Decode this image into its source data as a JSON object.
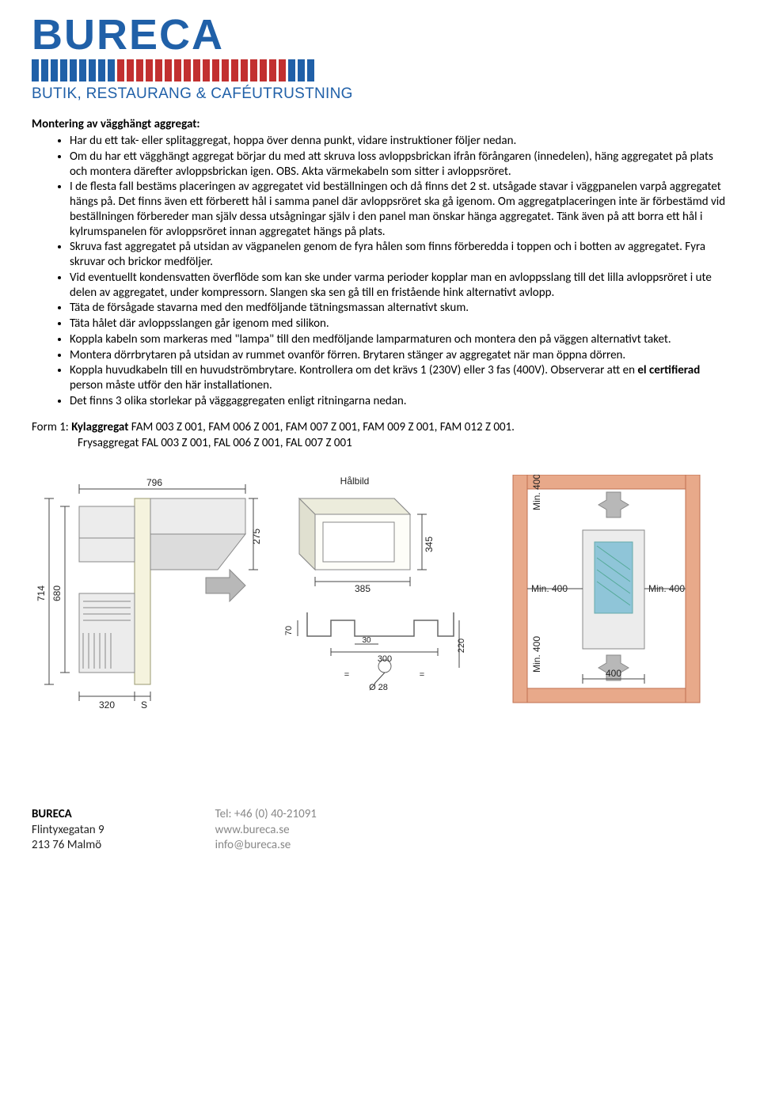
{
  "logo": {
    "name": "BURECA",
    "tagline": "BUTIK, RESTAURANG & CAFÉUTRUSTNING",
    "bar_colors": [
      "#2060a8",
      "#2060a8",
      "#2060a8",
      "#2060a8",
      "#2060a8",
      "#2060a8",
      "#2060a8",
      "#2060a8",
      "#2060a8",
      "#c23030",
      "#c23030",
      "#c23030",
      "#c23030",
      "#c23030",
      "#c23030",
      "#c23030",
      "#c23030",
      "#c23030",
      "#c23030",
      "#c23030",
      "#c23030",
      "#c23030",
      "#c23030",
      "#c23030",
      "#c23030",
      "#c23030",
      "#c23030",
      "#2060a8",
      "#2060a8",
      "#2060a8"
    ]
  },
  "heading": "Montering av vägghängt aggregat:",
  "bullets": [
    "Har du ett tak- eller splitaggregat, hoppa över denna punkt, vidare instruktioner följer nedan.",
    "Om du har ett vägghängt aggregat börjar du med att skruva loss avloppsbrickan ifrån förångaren (innedelen), häng aggregatet på plats och montera därefter avloppsbrickan igen. OBS. Akta värmekabeln som sitter i avloppsröret.",
    "I de flesta fall bestäms placeringen av aggregatet vid beställningen och då finns det 2 st. utsågade stavar i väggpanelen varpå aggregatet hängs på. Det finns även ett förberett hål i samma panel där avloppsröret ska gå igenom. Om aggregatplaceringen inte är förbestämd vid beställningen förbereder man själv dessa utsågningar själv i den panel man önskar hänga aggregatet. Tänk även på att borra ett hål i kylrumspanelen för avloppsröret innan aggregatet hängs på plats.",
    "Skruva fast aggregatet på utsidan av vägpanelen genom de fyra hålen som finns förberedda i toppen och i botten av aggregatet. Fyra skruvar och brickor medföljer.",
    "Vid eventuellt kondensvatten överflöde som kan ske under varma perioder kopplar man en avloppsslang till det lilla avloppsröret i ute delen av aggregatet, under kompressorn. Slangen ska sen gå till en fristående hink alternativt avlopp.",
    "Täta de försågade stavarna med den medföljande tätningsmassan alternativt skum.",
    "Täta hålet där avloppsslangen går igenom med silikon.",
    "Koppla kabeln som markeras med \"lampa\" till den medföljande lamparmaturen och montera den på väggen alternativt taket.",
    "Montera dörrbrytaren på utsidan av rummet ovanför förren. Brytaren stänger av aggregatet när man öppna dörren.",
    "Koppla huvudkabeln till en huvudströmbrytare. Kontrollera om det krävs 1 (230V) eller 3 fas (400V). Observerar att en el certifierad person måste utför den här installationen.",
    "Det finns 3 olika storlekar på väggaggregaten enligt ritningarna nedan."
  ],
  "bullet_bold_spans": {
    "9": "el certifierad"
  },
  "form": {
    "prefix": "Form 1: ",
    "line1_label": "Kylaggregat",
    "line1_rest": " FAM 003 Z 001, FAM 006 Z 001, FAM 007 Z 001, FAM 009 Z 001, FAM 012 Z 001.",
    "line2_label": "Frysaggregat",
    "line2_rest": " FAL 003 Z 001, FAL 006 Z 001, FAL 007 Z 001"
  },
  "diagrams": {
    "colors": {
      "wall": "#e8a98a",
      "unit_body": "#ececec",
      "unit_stroke": "#888888",
      "panel_fill": "#f5f3de",
      "panel_stroke": "#9a9a70",
      "dim_stroke": "#444444",
      "mesh": "#8fc5d8",
      "arrow_fill": "#b8b8b8"
    },
    "d1": {
      "dim_796": "796",
      "dim_714": "714",
      "dim_680": "680",
      "dim_275": "275",
      "dim_320": "320",
      "label_S": "S"
    },
    "d2": {
      "title": "Hålbild",
      "dim_345": "345",
      "dim_385": "385"
    },
    "d3": {
      "dim_70": "70",
      "dim_30": "30",
      "dim_300": "300",
      "dim_220": "220",
      "dim_eq": "=",
      "dim_d28": "Ø 28"
    },
    "d4": {
      "min400_top": "Min. 400",
      "min400_left": "Min. 400",
      "min400_right": "Min. 400",
      "min400_bot": "Min. 400",
      "dim_400": "400"
    }
  },
  "footer": {
    "name": "BURECA",
    "addr1": "Flintyxegatan 9",
    "addr2": "213 76 Malmö",
    "tel": "Tel: +46 (0) 40-21091",
    "web": "www.bureca.se",
    "email": "info@bureca.se"
  }
}
